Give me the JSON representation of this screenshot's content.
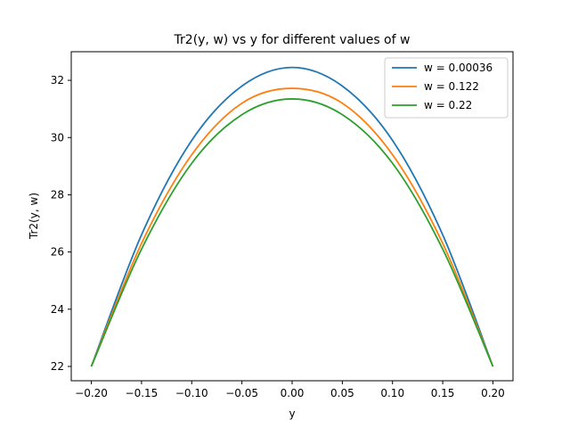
{
  "chart_data": {
    "type": "line",
    "title": "Tr2(y, w) vs y for different values of w",
    "xlabel": "y",
    "ylabel": "Tr2(y, w)",
    "xlim": [
      -0.22,
      0.22
    ],
    "ylim": [
      21.5,
      33.0
    ],
    "xticks": [
      -0.2,
      -0.15,
      -0.1,
      -0.05,
      0.0,
      0.05,
      0.1,
      0.15,
      0.2
    ],
    "xtick_labels": [
      "−0.20",
      "−0.15",
      "−0.10",
      "−0.05",
      "0.00",
      "0.05",
      "0.10",
      "0.15",
      "0.20"
    ],
    "yticks": [
      22,
      24,
      26,
      28,
      30,
      32
    ],
    "ytick_labels": [
      "22",
      "24",
      "26",
      "28",
      "30",
      "32"
    ],
    "grid": false,
    "legend_position": "top-right",
    "series": [
      {
        "name": "w = 0.00036",
        "color": "#1f77b4",
        "x": [
          -0.2,
          -0.15,
          -0.1,
          -0.05,
          0.0,
          0.05,
          0.1,
          0.15,
          0.2
        ],
        "y": [
          22.0,
          26.6,
          29.9,
          31.8,
          32.45,
          31.8,
          29.9,
          26.6,
          22.0
        ]
      },
      {
        "name": "w = 0.122",
        "color": "#ff7f0e",
        "x": [
          -0.2,
          -0.15,
          -0.1,
          -0.05,
          0.0,
          0.05,
          0.1,
          0.15,
          0.2
        ],
        "y": [
          22.0,
          26.3,
          29.4,
          31.2,
          31.72,
          31.2,
          29.4,
          26.3,
          22.0
        ]
      },
      {
        "name": "w = 0.22",
        "color": "#2ca02c",
        "x": [
          -0.2,
          -0.15,
          -0.1,
          -0.05,
          0.0,
          0.05,
          0.1,
          0.15,
          0.2
        ],
        "y": [
          22.0,
          26.1,
          29.1,
          30.8,
          31.35,
          30.8,
          29.1,
          26.1,
          22.0
        ]
      }
    ]
  }
}
